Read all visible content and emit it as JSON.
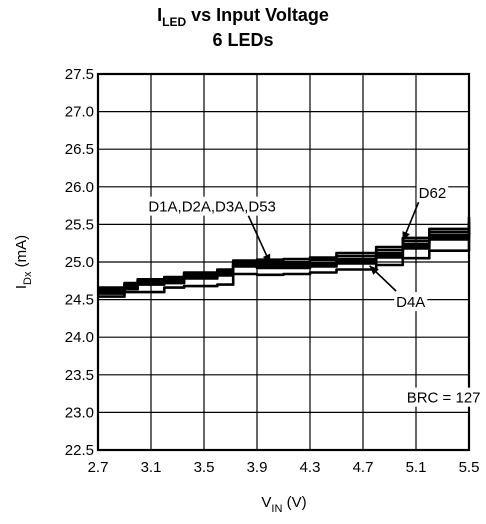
{
  "chart_data": {
    "type": "line",
    "title": {
      "main": "I",
      "sub": "LED",
      "rest": " vs Input Voltage"
    },
    "subtitle": "6 LEDs",
    "xlabel": {
      "main": "V",
      "sub": "IN",
      "rest": " (V)"
    },
    "ylabel": {
      "main": "I",
      "sub": "Dx",
      "rest": " (mA)"
    },
    "xlim": [
      2.7,
      5.5
    ],
    "ylim": [
      22.5,
      27.5
    ],
    "grid": true,
    "x_ticks": [
      2.7,
      3.1,
      3.5,
      3.9,
      4.3,
      4.7,
      5.1,
      5.5
    ],
    "x_tick_labels": [
      "2.7",
      "3.1",
      "3.5",
      "3.9",
      "4.3",
      "4.7",
      "5.1",
      "5.5"
    ],
    "y_ticks": [
      22.5,
      23.0,
      23.5,
      24.0,
      24.5,
      25.0,
      25.5,
      26.0,
      26.5,
      27.0,
      27.5
    ],
    "y_tick_labels": [
      "22.5",
      "23.0",
      "23.5",
      "24.0",
      "24.5",
      "25.0",
      "25.5",
      "26.0",
      "26.5",
      "27.0",
      "27.5"
    ],
    "series": [
      {
        "name": "D62",
        "x": [
          2.7,
          2.9,
          3.0,
          3.2,
          3.35,
          3.6,
          3.72,
          3.9,
          4.1,
          4.3,
          4.5,
          4.8,
          5.0,
          5.2,
          5.5
        ],
        "y": [
          24.66,
          24.72,
          24.77,
          24.8,
          24.86,
          24.9,
          25.02,
          25.03,
          25.04,
          25.06,
          25.12,
          25.2,
          25.32,
          25.44,
          25.6
        ]
      },
      {
        "name": "",
        "x": [
          2.7,
          2.9,
          3.0,
          3.2,
          3.35,
          3.6,
          3.72,
          3.9,
          4.1,
          4.3,
          4.5,
          4.8,
          5.0,
          5.2,
          5.5
        ],
        "y": [
          24.64,
          24.7,
          24.76,
          24.78,
          24.84,
          24.88,
          25.0,
          25.0,
          25.0,
          25.03,
          25.08,
          25.16,
          25.28,
          25.4,
          25.54
        ]
      },
      {
        "name": "",
        "x": [
          2.7,
          2.9,
          3.0,
          3.2,
          3.35,
          3.6,
          3.72,
          3.9,
          4.1,
          4.3,
          4.5,
          4.8,
          5.0,
          5.2,
          5.5
        ],
        "y": [
          24.62,
          24.68,
          24.74,
          24.76,
          24.82,
          24.86,
          24.98,
          24.97,
          24.97,
          24.99,
          25.04,
          25.12,
          25.24,
          25.36,
          25.5
        ]
      },
      {
        "name": "",
        "x": [
          2.7,
          2.9,
          3.0,
          3.2,
          3.35,
          3.6,
          3.72,
          3.9,
          4.1,
          4.3,
          4.5,
          4.8,
          5.0,
          5.2,
          5.5
        ],
        "y": [
          24.6,
          24.66,
          24.72,
          24.74,
          24.8,
          24.84,
          24.96,
          24.95,
          24.94,
          24.96,
          25.01,
          25.09,
          25.21,
          25.33,
          25.46
        ]
      },
      {
        "name": "",
        "x": [
          2.7,
          2.9,
          3.0,
          3.2,
          3.35,
          3.6,
          3.72,
          3.9,
          4.1,
          4.3,
          4.5,
          4.8,
          5.0,
          5.2,
          5.5
        ],
        "y": [
          24.58,
          24.64,
          24.7,
          24.72,
          24.78,
          24.82,
          24.94,
          24.92,
          24.92,
          24.94,
          24.98,
          25.06,
          25.18,
          25.3,
          25.42
        ]
      },
      {
        "name": "D4A",
        "x": [
          2.7,
          2.9,
          3.0,
          3.2,
          3.35,
          3.6,
          3.72,
          3.9,
          4.1,
          4.3,
          4.5,
          4.8,
          5.0,
          5.2,
          5.5
        ],
        "y": [
          24.54,
          24.6,
          24.6,
          24.66,
          24.68,
          24.7,
          24.84,
          24.83,
          24.84,
          24.86,
          24.9,
          24.96,
          25.05,
          25.15,
          25.3
        ]
      }
    ],
    "annotations": [
      {
        "text": "D1A,D2A,D3A,D53",
        "target_x": 4.0,
        "target_y": 24.98,
        "text_x": 3.08,
        "text_y": 25.67
      },
      {
        "text": "D62",
        "target_x": 5.0,
        "target_y": 25.28,
        "text_x": 5.12,
        "text_y": 25.85
      },
      {
        "text": "D4A",
        "target_x": 4.75,
        "target_y": 24.95,
        "text_x": 4.95,
        "text_y": 24.4
      },
      {
        "text": "BRC = 127",
        "text_x": 5.03,
        "text_y": 23.13
      }
    ],
    "colors": {
      "line": "#000000",
      "grid": "#000000",
      "background": "#ffffff"
    }
  }
}
